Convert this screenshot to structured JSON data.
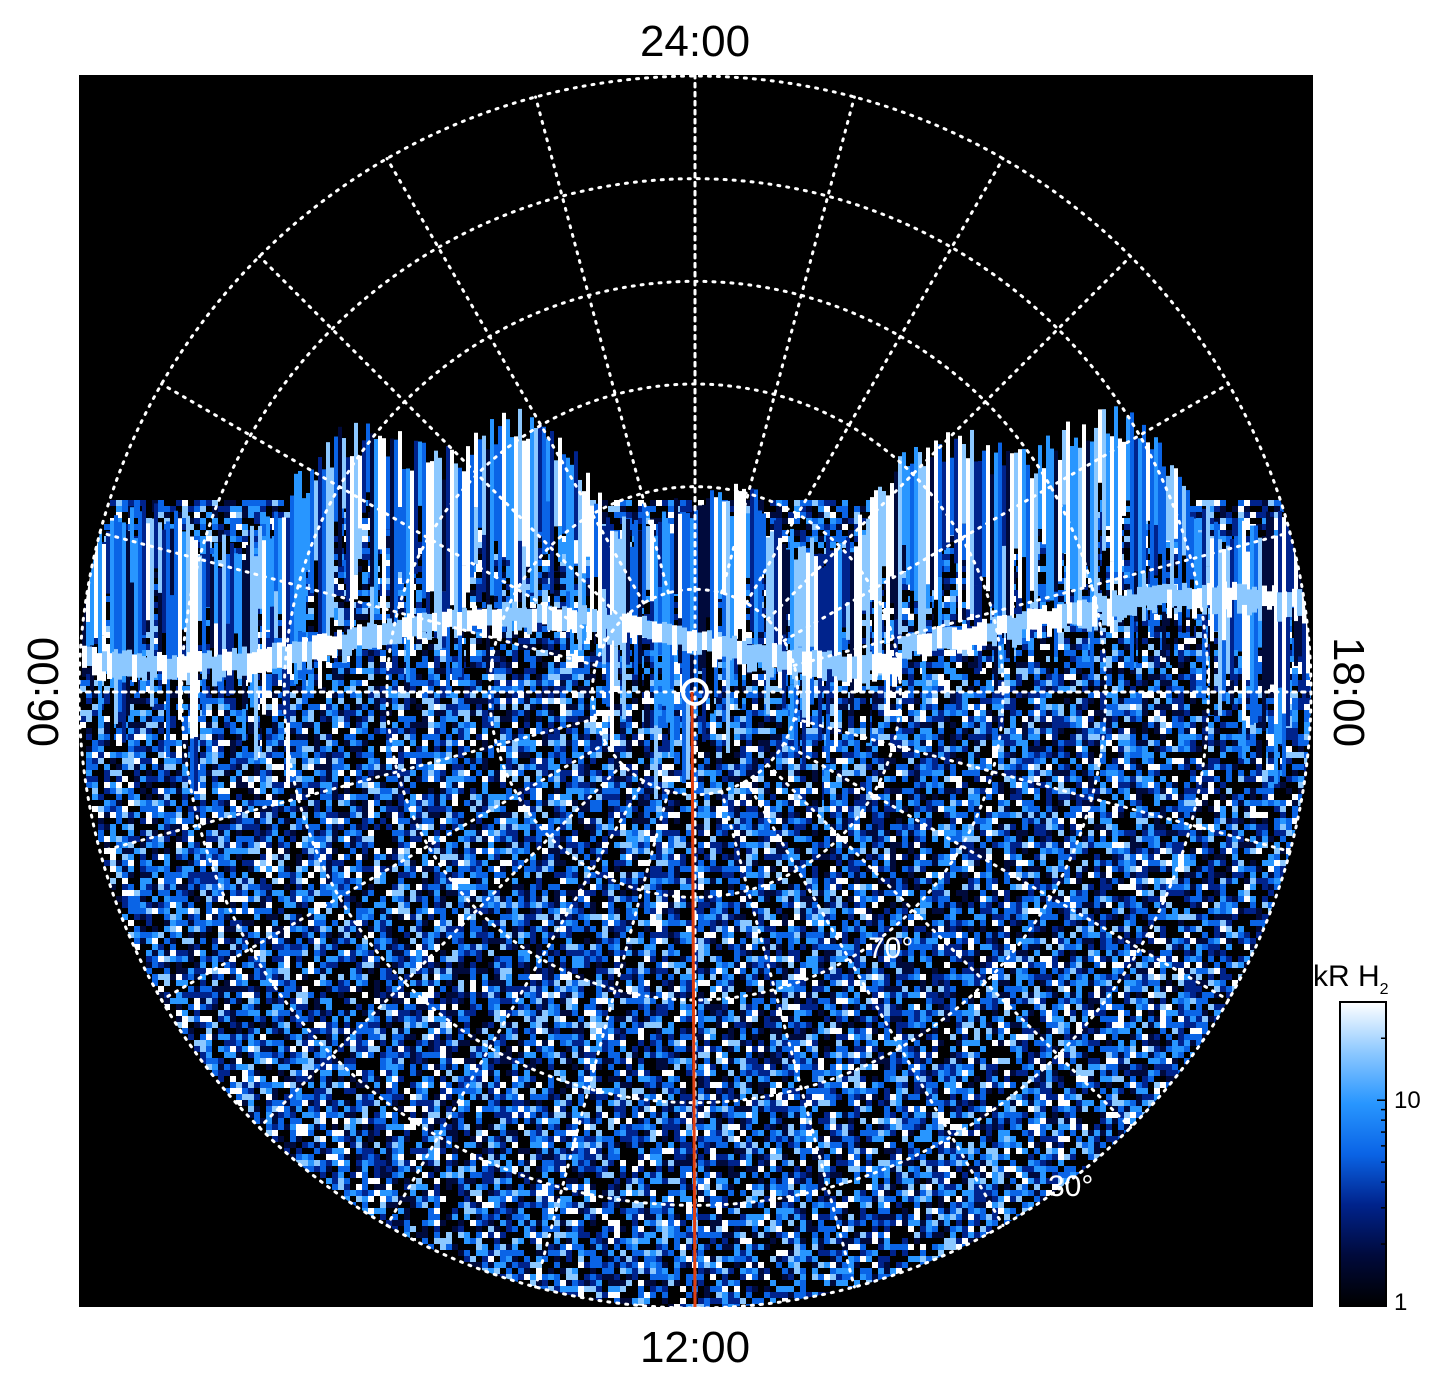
{
  "chart_data": {
    "type": "heatmap",
    "projection": "polar",
    "local_time_labels": {
      "top": "24:00",
      "bottom": "12:00",
      "left": "06:00",
      "right": "18:00"
    },
    "latitude_labels": [
      {
        "label": "70°",
        "latitude": 70
      },
      {
        "label": "30°",
        "latitude": 30
      }
    ],
    "latitude_circles": [
      80,
      70,
      60,
      50,
      40,
      30
    ],
    "meridian_spacing_hours": 1,
    "reference_meridian_local_time": "12:00",
    "colorbar": {
      "title": "kR H",
      "title_subscript": "2",
      "scale": "log",
      "range": [
        1,
        30
      ],
      "ticks": [
        {
          "value": 1,
          "label": "1"
        },
        {
          "value": 10,
          "label": "10"
        }
      ],
      "colors": [
        "#000000",
        "#000a3c",
        "#00238c",
        "#0a64e6",
        "#2896ff",
        "#8cc8ff",
        "#ffffff"
      ]
    },
    "colors": {
      "background": "#000000",
      "grid": "#ffffff",
      "reference_meridian": "#e04010"
    },
    "grid": true
  }
}
